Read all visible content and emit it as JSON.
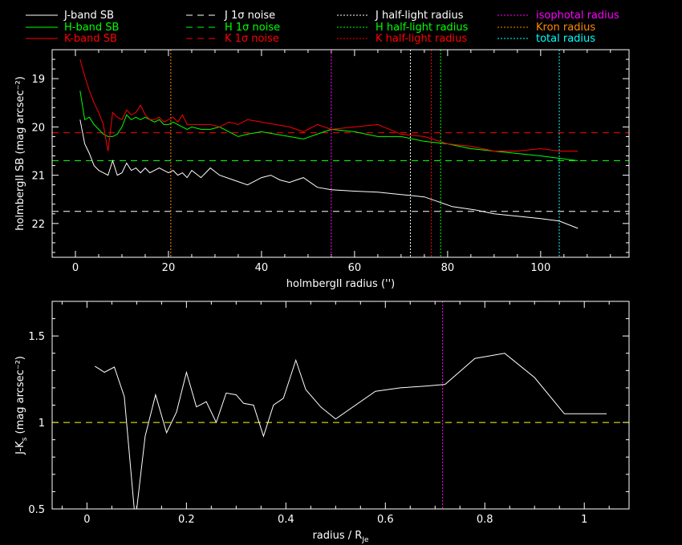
{
  "legend": [
    {
      "label": "J-band SB",
      "color": "#ffffff",
      "dash": "solid"
    },
    {
      "label": "H-band SB",
      "color": "#00ff00",
      "dash": "solid"
    },
    {
      "label": "K-band SB",
      "color": "#ff0000",
      "dash": "solid"
    },
    {
      "label": "J 1σ noise",
      "color": "#ffffff",
      "dash": "dashed"
    },
    {
      "label": "H 1σ noise",
      "color": "#00ff00",
      "dash": "dashed"
    },
    {
      "label": "K 1σ noise",
      "color": "#ff0000",
      "dash": "dashed"
    },
    {
      "label": "J half-light radius",
      "color": "#ffffff",
      "dash": "dotted"
    },
    {
      "label": "H half-light radius",
      "color": "#00ff00",
      "dash": "dotted"
    },
    {
      "label": "K half-light radius",
      "color": "#ff0000",
      "dash": "dotted"
    },
    {
      "label": "isophotal radius",
      "color": "#ff00ff",
      "dash": "dotted"
    },
    {
      "label": "Kron radius",
      "color": "#ff8800",
      "dash": "dotted"
    },
    {
      "label": "total radius",
      "color": "#00ffff",
      "dash": "dotted"
    }
  ],
  "chart_data": [
    {
      "type": "line",
      "xlabel": "holmbergII radius ('')",
      "ylabel": "holmbergII SB (mag arcsec⁻²)",
      "xlim": [
        -5,
        119
      ],
      "ylim": [
        22.7,
        18.4
      ],
      "y_inverted": true,
      "xticks": [
        0,
        20,
        40,
        60,
        80,
        100
      ],
      "yticks": [
        19,
        20,
        21,
        22
      ],
      "series": [
        {
          "name": "J-band SB",
          "color": "#ffffff",
          "x": [
            1,
            2,
            3,
            4,
            5,
            6,
            7,
            8,
            9,
            10,
            11,
            12,
            13,
            14,
            15,
            16,
            17,
            18,
            19,
            20,
            21,
            22,
            23,
            24,
            25,
            27,
            29,
            31,
            34,
            37,
            40,
            42,
            44,
            46,
            49,
            52,
            55,
            60,
            65,
            70,
            75,
            78,
            81,
            86,
            90,
            95,
            100,
            104,
            108
          ],
          "y": [
            19.85,
            20.35,
            20.55,
            20.8,
            20.9,
            20.95,
            21.0,
            20.7,
            21.0,
            20.95,
            20.75,
            20.9,
            20.85,
            20.95,
            20.85,
            20.95,
            20.9,
            20.85,
            20.9,
            20.95,
            20.9,
            21.0,
            20.95,
            21.05,
            20.9,
            21.05,
            20.85,
            21.0,
            21.1,
            21.2,
            21.05,
            21.0,
            21.1,
            21.15,
            21.05,
            21.25,
            21.3,
            21.33,
            21.35,
            21.4,
            21.45,
            21.55,
            21.65,
            21.72,
            21.8,
            21.85,
            21.9,
            21.95,
            22.1
          ]
        },
        {
          "name": "H-band SB",
          "color": "#00ff00",
          "x": [
            1,
            2,
            3,
            4,
            5,
            6,
            7,
            8,
            9,
            10,
            11,
            12,
            13,
            14,
            15,
            16,
            17,
            18,
            19,
            20,
            21,
            22,
            23,
            24,
            25,
            27,
            29,
            31,
            33,
            35,
            37,
            40,
            43,
            46,
            49,
            52,
            55,
            60,
            65,
            70,
            75,
            80,
            85,
            90,
            95,
            100,
            104,
            108
          ],
          "y": [
            19.25,
            19.85,
            19.8,
            19.95,
            20.05,
            20.15,
            20.2,
            20.2,
            20.15,
            20.0,
            19.75,
            19.85,
            19.8,
            19.85,
            19.8,
            19.85,
            19.9,
            19.85,
            19.95,
            19.95,
            19.9,
            19.95,
            20.0,
            20.05,
            20.0,
            20.05,
            20.05,
            20.0,
            20.1,
            20.2,
            20.15,
            20.1,
            20.15,
            20.2,
            20.25,
            20.15,
            20.05,
            20.1,
            20.2,
            20.2,
            20.3,
            20.35,
            20.45,
            20.5,
            20.55,
            20.6,
            20.65,
            20.7
          ]
        },
        {
          "name": "K-band SB",
          "color": "#ff0000",
          "x": [
            1,
            2,
            3,
            4,
            5,
            6,
            7,
            8,
            9,
            10,
            11,
            12,
            13,
            14,
            15,
            16,
            17,
            18,
            19,
            20,
            21,
            22,
            23,
            24,
            25,
            27,
            29,
            31,
            33,
            35,
            37,
            40,
            43,
            46,
            49,
            52,
            55,
            60,
            65,
            70,
            75,
            80,
            85,
            90,
            95,
            100,
            104,
            108
          ],
          "y": [
            18.6,
            18.95,
            19.25,
            19.5,
            19.7,
            19.95,
            20.5,
            19.7,
            19.8,
            19.85,
            19.65,
            19.75,
            19.7,
            19.55,
            19.75,
            19.85,
            19.85,
            19.8,
            19.9,
            19.85,
            19.8,
            19.9,
            19.75,
            19.95,
            19.95,
            19.95,
            19.95,
            20.0,
            19.9,
            19.95,
            19.85,
            19.9,
            19.95,
            20.0,
            20.1,
            19.95,
            20.05,
            20.0,
            19.95,
            20.15,
            20.2,
            20.35,
            20.4,
            20.5,
            20.5,
            20.45,
            20.5,
            20.5
          ]
        }
      ],
      "hlines": [
        {
          "name": "J 1σ noise",
          "y": 21.75,
          "color": "#ffffff"
        },
        {
          "name": "H 1σ noise",
          "y": 20.7,
          "color": "#00ff00"
        },
        {
          "name": "K 1σ noise",
          "y": 20.12,
          "color": "#ff0000"
        }
      ],
      "vlines": [
        {
          "name": "Kron radius",
          "x": 20.5,
          "color": "#ff8800"
        },
        {
          "name": "isophotal radius",
          "x": 55,
          "color": "#ff00ff"
        },
        {
          "name": "J half-light radius",
          "x": 72,
          "color": "#ffffff"
        },
        {
          "name": "K half-light radius",
          "x": 76.5,
          "color": "#ff0000"
        },
        {
          "name": "H half-light radius",
          "x": 78.5,
          "color": "#00ff00"
        },
        {
          "name": "total radius",
          "x": 104,
          "color": "#00ffff"
        }
      ]
    },
    {
      "type": "line",
      "xlabel": "radius / R",
      "xlabel_sub": "Je",
      "ylabel": "J-K",
      "ylabel_sub": "s",
      "ylabel_tail": " (mag arcsec⁻²)",
      "xlim": [
        -0.07,
        1.09
      ],
      "ylim": [
        0.5,
        1.7
      ],
      "xticks": [
        0,
        0.2,
        0.4,
        0.6,
        0.8,
        1
      ],
      "yticks": [
        0.5,
        1,
        1.5
      ],
      "series": [
        {
          "name": "J-K",
          "color": "#ffffff",
          "x": [
            0.016,
            0.035,
            0.055,
            0.075,
            0.095,
            0.1,
            0.117,
            0.138,
            0.16,
            0.18,
            0.2,
            0.22,
            0.24,
            0.26,
            0.28,
            0.3,
            0.315,
            0.335,
            0.355,
            0.375,
            0.395,
            0.42,
            0.44,
            0.47,
            0.5,
            0.58,
            0.63,
            0.68,
            0.72,
            0.78,
            0.84,
            0.9,
            0.96,
            1.045
          ],
          "y": [
            1.325,
            1.29,
            1.32,
            1.15,
            0.5,
            0.5,
            0.92,
            1.16,
            0.94,
            1.06,
            1.29,
            1.09,
            1.12,
            1.0,
            1.17,
            1.16,
            1.11,
            1.1,
            0.92,
            1.1,
            1.14,
            1.36,
            1.19,
            1.09,
            1.02,
            1.18,
            1.2,
            1.21,
            1.22,
            1.37,
            1.4,
            1.26,
            1.05,
            1.05
          ]
        }
      ],
      "hlines": [
        {
          "y": 1.0,
          "color": "#ffff00"
        }
      ],
      "vlines": [
        {
          "x": 0.715,
          "color": "#ff00ff"
        }
      ]
    }
  ]
}
